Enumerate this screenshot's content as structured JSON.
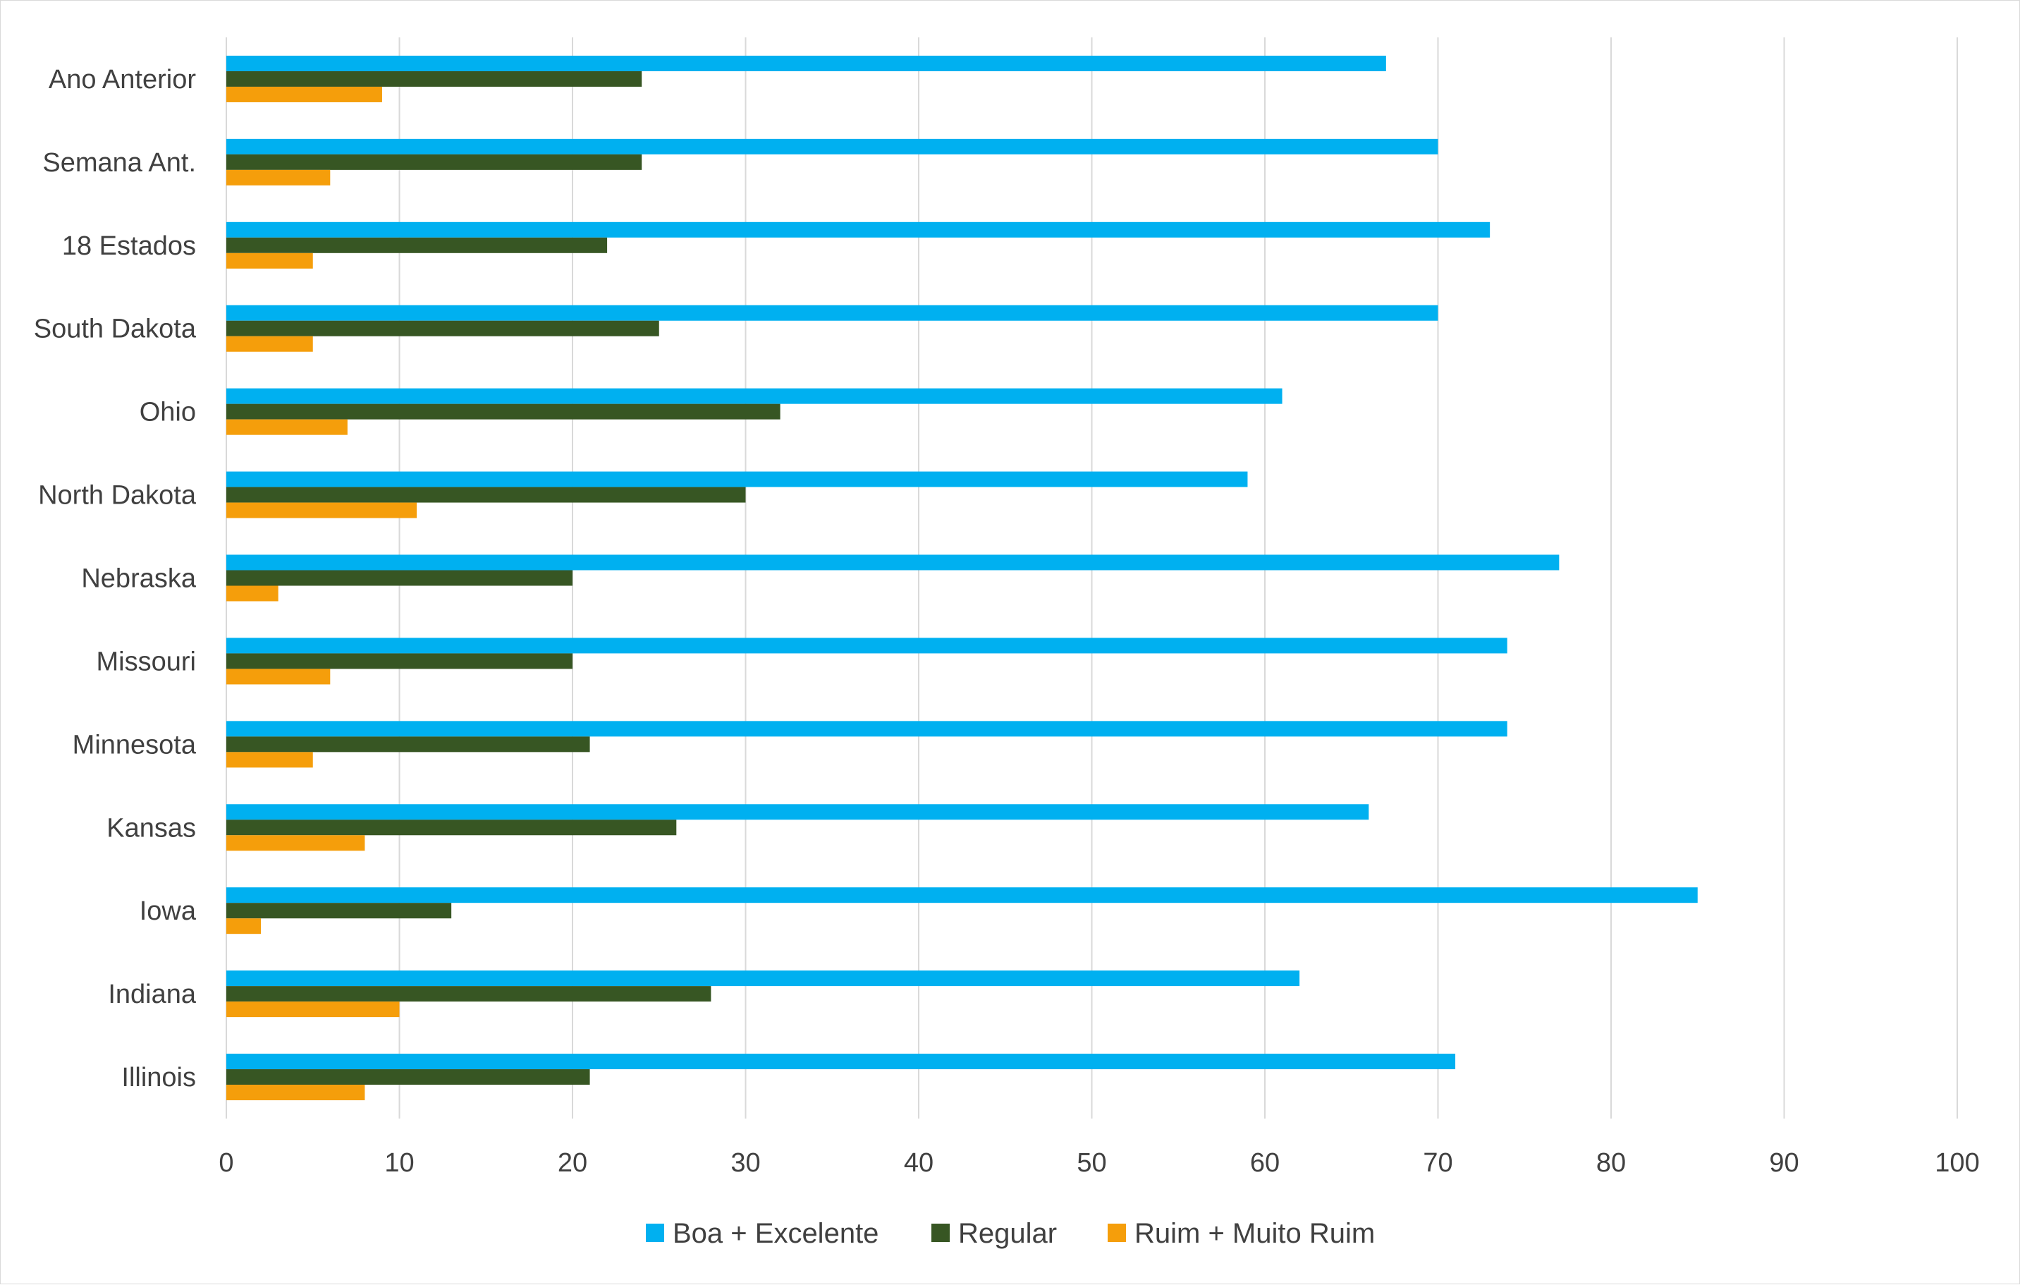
{
  "chart_data": {
    "type": "bar",
    "orientation": "horizontal",
    "categories": [
      "Ano Anterior",
      "Semana Ant.",
      "18 Estados",
      "South Dakota",
      "Ohio",
      "North Dakota",
      "Nebraska",
      "Missouri",
      "Minnesota",
      "Kansas",
      "Iowa",
      "Indiana",
      "Illinois"
    ],
    "series": [
      {
        "name": "Boa + Excelente",
        "color": "#00B0F0",
        "values": [
          67,
          70,
          73,
          70,
          61,
          59,
          77,
          74,
          74,
          66,
          85,
          62,
          71
        ]
      },
      {
        "name": "Regular",
        "color": "#375623",
        "values": [
          24,
          24,
          22,
          25,
          32,
          30,
          20,
          20,
          21,
          26,
          13,
          28,
          21
        ]
      },
      {
        "name": "Ruim + Muito Ruim",
        "color": "#F59E0B",
        "values": [
          9,
          6,
          5,
          5,
          7,
          11,
          3,
          6,
          5,
          8,
          2,
          10,
          8
        ]
      }
    ],
    "xlim": [
      0,
      100
    ],
    "xticks": [
      0,
      10,
      20,
      30,
      40,
      50,
      60,
      70,
      80,
      90,
      100
    ],
    "xtick_labels": [
      "0",
      "10",
      "20",
      "30",
      "40",
      "50",
      "60",
      "70",
      "80",
      "90",
      "100"
    ],
    "grid": "vertical",
    "legend_position": "bottom",
    "gridline_color": "#D9D9D9"
  }
}
